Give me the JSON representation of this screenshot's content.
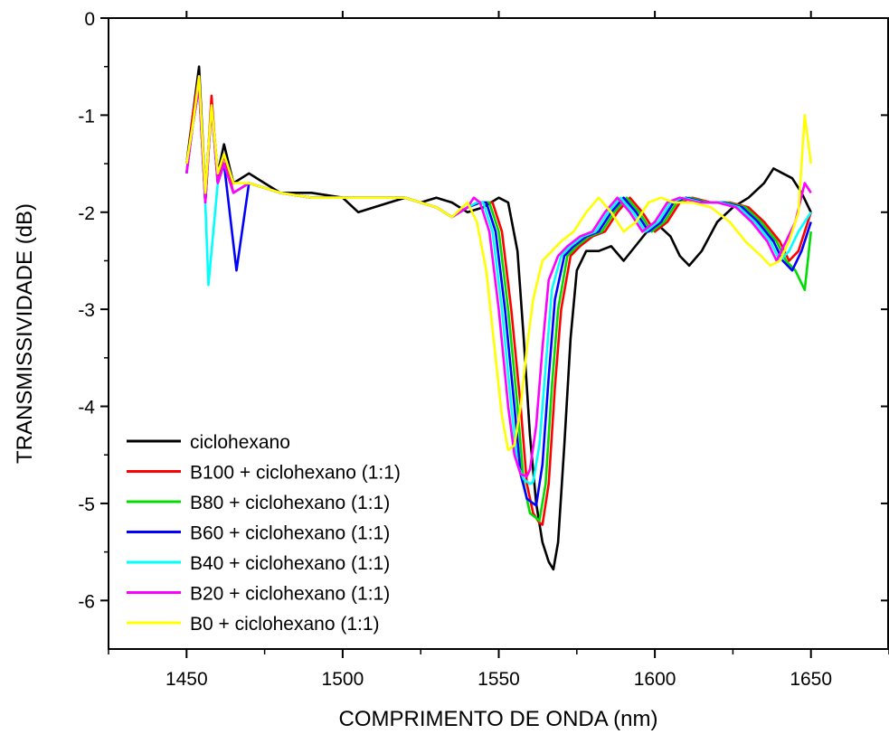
{
  "chart_data": {
    "type": "line",
    "xlabel": "COMPRIMENTO DE ONDA (nm)",
    "ylabel": "TRANSMISSIVIDADE (dB)",
    "xlim": [
      1425,
      1675
    ],
    "ylim": [
      -6.5,
      0
    ],
    "xticks": [
      1450,
      1500,
      1550,
      1600,
      1650
    ],
    "yticks": [
      0,
      -1,
      -2,
      -3,
      -4,
      -5,
      -6
    ],
    "xtick_labels": [
      "1450",
      "1500",
      "1550",
      "1600",
      "1650"
    ],
    "ytick_labels": [
      "0",
      "-1",
      "-2",
      "-3",
      "-4",
      "-5",
      "-6"
    ],
    "grid": false,
    "legend_position": "bottom-left",
    "series": [
      {
        "name": "ciclohexano",
        "color": "#000000",
        "x": [
          1450,
          1452,
          1454,
          1456,
          1458,
          1460,
          1462,
          1465,
          1470,
          1475,
          1480,
          1490,
          1500,
          1505,
          1510,
          1515,
          1520,
          1525,
          1530,
          1535,
          1540,
          1545,
          1550,
          1553,
          1556,
          1558,
          1560,
          1562,
          1564,
          1566,
          1567.5,
          1569,
          1571,
          1573,
          1575,
          1578,
          1582,
          1586,
          1590,
          1595,
          1600,
          1605,
          1608,
          1611,
          1615,
          1620,
          1625,
          1630,
          1635,
          1638,
          1641,
          1644,
          1647,
          1650
        ],
        "y": [
          -1.5,
          -1.0,
          -0.5,
          -1.8,
          -0.9,
          -1.6,
          -1.3,
          -1.7,
          -1.6,
          -1.7,
          -1.8,
          -1.8,
          -1.85,
          -2.0,
          -1.95,
          -1.9,
          -1.85,
          -1.9,
          -1.85,
          -1.9,
          -2.0,
          -1.95,
          -1.85,
          -1.9,
          -2.4,
          -3.3,
          -4.3,
          -5.0,
          -5.4,
          -5.6,
          -5.68,
          -5.4,
          -4.4,
          -3.3,
          -2.6,
          -2.4,
          -2.4,
          -2.35,
          -2.5,
          -2.3,
          -2.1,
          -2.25,
          -2.45,
          -2.55,
          -2.4,
          -2.1,
          -1.95,
          -1.85,
          -1.7,
          -1.55,
          -1.6,
          -1.65,
          -1.8,
          -2.0
        ]
      },
      {
        "name": "B100 + ciclohexano (1:1)",
        "color": "#ff0000",
        "x": [
          1450,
          1452,
          1454,
          1456,
          1458,
          1460,
          1462,
          1465,
          1470,
          1475,
          1480,
          1490,
          1500,
          1510,
          1520,
          1530,
          1535,
          1540,
          1544,
          1548,
          1551,
          1554,
          1557,
          1559,
          1561,
          1563,
          1564,
          1566,
          1568,
          1570,
          1573,
          1576,
          1580,
          1584,
          1588,
          1592,
          1596,
          1600,
          1604,
          1608,
          1612,
          1618,
          1624,
          1630,
          1635,
          1640,
          1643,
          1646,
          1650
        ],
        "y": [
          -1.6,
          -1.0,
          -0.6,
          -1.9,
          -0.8,
          -1.7,
          -1.4,
          -1.8,
          -1.7,
          -1.75,
          -1.8,
          -1.85,
          -1.85,
          -1.85,
          -1.85,
          -1.95,
          -2.05,
          -1.95,
          -1.9,
          -1.9,
          -2.2,
          -3.0,
          -4.0,
          -4.8,
          -5.1,
          -5.2,
          -5.22,
          -4.8,
          -3.8,
          -3.0,
          -2.45,
          -2.35,
          -2.25,
          -2.2,
          -2.0,
          -1.85,
          -2.0,
          -2.2,
          -2.1,
          -1.9,
          -1.85,
          -1.9,
          -1.9,
          -1.95,
          -2.1,
          -2.3,
          -2.5,
          -2.4,
          -2.0
        ]
      },
      {
        "name": "B80 + ciclohexano (1:1)",
        "color": "#00dd00",
        "x": [
          1450,
          1452,
          1454,
          1456,
          1458,
          1460,
          1462,
          1465,
          1470,
          1475,
          1480,
          1490,
          1500,
          1510,
          1520,
          1530,
          1535,
          1540,
          1544,
          1547,
          1550,
          1553,
          1556,
          1558,
          1560,
          1562,
          1563,
          1565,
          1567,
          1569,
          1572,
          1575,
          1579,
          1583,
          1587,
          1591,
          1595,
          1599,
          1603,
          1607,
          1611,
          1617,
          1623,
          1629,
          1634,
          1639,
          1642,
          1645,
          1648,
          1650
        ],
        "y": [
          -1.6,
          -1.1,
          -0.7,
          -1.9,
          -0.9,
          -1.7,
          -1.5,
          -1.8,
          -1.7,
          -1.75,
          -1.8,
          -1.85,
          -1.85,
          -1.85,
          -1.85,
          -1.95,
          -2.05,
          -1.95,
          -1.9,
          -1.9,
          -2.2,
          -3.0,
          -4.0,
          -4.8,
          -5.1,
          -5.15,
          -5.18,
          -4.8,
          -3.8,
          -3.0,
          -2.45,
          -2.35,
          -2.25,
          -2.2,
          -2.0,
          -1.85,
          -2.0,
          -2.2,
          -2.1,
          -1.9,
          -1.85,
          -1.9,
          -1.9,
          -1.95,
          -2.1,
          -2.3,
          -2.5,
          -2.6,
          -2.8,
          -2.2
        ]
      },
      {
        "name": "B60 + ciclohexano (1:1)",
        "color": "#0000ff",
        "x": [
          1450,
          1452,
          1454,
          1456,
          1458,
          1460,
          1462,
          1466,
          1470,
          1475,
          1480,
          1490,
          1500,
          1510,
          1520,
          1530,
          1535,
          1540,
          1544,
          1546,
          1549,
          1552,
          1555,
          1557,
          1559,
          1561,
          1562,
          1564,
          1566,
          1568,
          1571,
          1574,
          1578,
          1582,
          1586,
          1590,
          1594,
          1598,
          1602,
          1606,
          1610,
          1616,
          1622,
          1628,
          1633,
          1638,
          1641,
          1644,
          1647,
          1650
        ],
        "y": [
          -1.6,
          -1.1,
          -0.7,
          -1.9,
          -0.9,
          -1.7,
          -1.5,
          -2.6,
          -1.7,
          -1.75,
          -1.8,
          -1.85,
          -1.85,
          -1.85,
          -1.85,
          -1.95,
          -2.05,
          -1.95,
          -1.9,
          -1.9,
          -2.2,
          -3.0,
          -4.0,
          -4.7,
          -4.95,
          -5.0,
          -5.02,
          -4.6,
          -3.7,
          -2.9,
          -2.45,
          -2.35,
          -2.25,
          -2.2,
          -2.0,
          -1.85,
          -2.0,
          -2.2,
          -2.1,
          -1.9,
          -1.85,
          -1.9,
          -1.9,
          -1.95,
          -2.1,
          -2.3,
          -2.5,
          -2.6,
          -2.4,
          -2.1
        ]
      },
      {
        "name": "B40 + ciclohexano (1:1)",
        "color": "#00ffff",
        "x": [
          1450,
          1452,
          1454,
          1456,
          1457,
          1460,
          1462,
          1465,
          1470,
          1475,
          1480,
          1490,
          1500,
          1510,
          1520,
          1530,
          1535,
          1540,
          1543,
          1545,
          1548,
          1551,
          1554,
          1556,
          1558,
          1560,
          1561,
          1563,
          1565,
          1567,
          1570,
          1573,
          1577,
          1581,
          1585,
          1589,
          1593,
          1597,
          1601,
          1605,
          1609,
          1615,
          1621,
          1627,
          1632,
          1637,
          1640,
          1643,
          1646,
          1650
        ],
        "y": [
          -1.6,
          -1.1,
          -0.7,
          -1.9,
          -2.75,
          -1.7,
          -1.5,
          -1.8,
          -1.7,
          -1.75,
          -1.8,
          -1.85,
          -1.85,
          -1.85,
          -1.85,
          -1.95,
          -2.05,
          -1.95,
          -1.9,
          -1.9,
          -2.2,
          -3.0,
          -4.0,
          -4.6,
          -4.75,
          -4.8,
          -4.78,
          -4.4,
          -3.6,
          -2.8,
          -2.45,
          -2.35,
          -2.25,
          -2.2,
          -2.0,
          -1.85,
          -2.0,
          -2.2,
          -2.1,
          -1.9,
          -1.85,
          -1.9,
          -1.9,
          -1.95,
          -2.1,
          -2.3,
          -2.5,
          -2.4,
          -2.2,
          -2.0
        ]
      },
      {
        "name": "B20 + ciclohexano (1:1)",
        "color": "#ff00ff",
        "x": [
          1450,
          1452,
          1454,
          1456,
          1458,
          1460,
          1462,
          1465,
          1470,
          1475,
          1480,
          1490,
          1500,
          1510,
          1520,
          1530,
          1535,
          1540,
          1542,
          1544,
          1547,
          1550,
          1553,
          1555,
          1557,
          1559,
          1560,
          1562,
          1564,
          1566,
          1569,
          1572,
          1576,
          1580,
          1584,
          1588,
          1592,
          1596,
          1600,
          1604,
          1608,
          1614,
          1620,
          1626,
          1631,
          1636,
          1639,
          1642,
          1645,
          1648,
          1650
        ],
        "y": [
          -1.6,
          -1.1,
          -0.7,
          -1.9,
          -0.9,
          -1.7,
          -1.5,
          -1.8,
          -1.7,
          -1.75,
          -1.8,
          -1.85,
          -1.85,
          -1.85,
          -1.85,
          -1.95,
          -2.05,
          -1.95,
          -1.85,
          -1.9,
          -2.2,
          -3.0,
          -4.0,
          -4.5,
          -4.7,
          -4.72,
          -4.65,
          -4.2,
          -3.4,
          -2.7,
          -2.45,
          -2.35,
          -2.25,
          -2.2,
          -2.0,
          -1.85,
          -2.0,
          -2.2,
          -2.1,
          -1.9,
          -1.85,
          -1.9,
          -1.9,
          -1.95,
          -2.1,
          -2.3,
          -2.5,
          -2.3,
          -2.1,
          -1.7,
          -1.8
        ]
      },
      {
        "name": "B0 + ciclohexano (1:1)",
        "color": "#ffff00",
        "x": [
          1450,
          1452,
          1454,
          1456,
          1458,
          1460,
          1462,
          1465,
          1470,
          1475,
          1480,
          1490,
          1500,
          1510,
          1520,
          1530,
          1535,
          1540,
          1543,
          1546,
          1549,
          1551,
          1553,
          1555,
          1557,
          1559,
          1561,
          1564,
          1567,
          1570,
          1574,
          1578,
          1582,
          1586,
          1590,
          1594,
          1598,
          1602,
          1606,
          1612,
          1618,
          1624,
          1629,
          1634,
          1637,
          1640,
          1643,
          1646,
          1648,
          1650
        ],
        "y": [
          -1.5,
          -1.1,
          -0.6,
          -1.8,
          -0.9,
          -1.6,
          -1.4,
          -1.7,
          -1.7,
          -1.75,
          -1.8,
          -1.85,
          -1.85,
          -1.85,
          -1.85,
          -1.95,
          -2.05,
          -1.9,
          -2.1,
          -2.6,
          -3.5,
          -4.1,
          -4.45,
          -4.4,
          -4.0,
          -3.4,
          -2.9,
          -2.5,
          -2.4,
          -2.3,
          -2.2,
          -2.0,
          -1.85,
          -2.0,
          -2.2,
          -2.1,
          -1.9,
          -1.85,
          -1.9,
          -1.9,
          -1.95,
          -2.1,
          -2.3,
          -2.45,
          -2.55,
          -2.5,
          -2.3,
          -2.0,
          -1.0,
          -1.5
        ]
      }
    ]
  }
}
